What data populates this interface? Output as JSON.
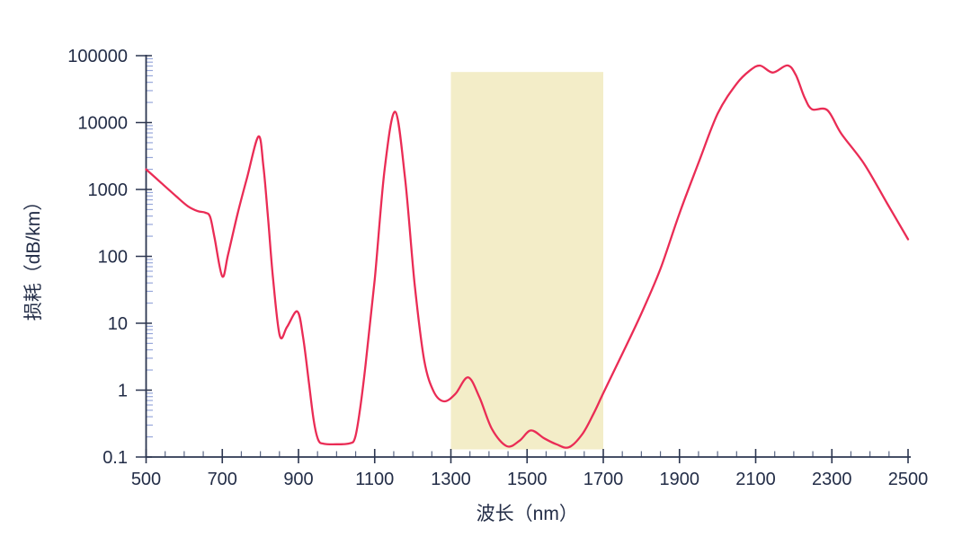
{
  "chart_data": {
    "type": "line",
    "xlabel": "波长（nm）",
    "ylabel": "损耗（dB/km）",
    "x_axis": {
      "min": 500,
      "max": 2500,
      "major_ticks": [
        500,
        700,
        900,
        1100,
        1300,
        1500,
        1700,
        1900,
        2100,
        2300,
        2500
      ],
      "minor_tick_step": 50,
      "scale": "linear"
    },
    "y_axis": {
      "min": 0.1,
      "max": 100000,
      "major_tick_labels": [
        "100000",
        "10000",
        "1000",
        "100",
        "10",
        "1",
        "0.1"
      ],
      "scale": "log"
    },
    "highlight_band": {
      "x_start": 1300,
      "x_end": 1700,
      "y_top": 57000,
      "y_bottom": 0.13,
      "color": "#f3edc8"
    },
    "series": [
      {
        "name": "attenuation-curve",
        "color": "#ea2c55",
        "points": [
          [
            500,
            2000
          ],
          [
            540,
            1250
          ],
          [
            580,
            780
          ],
          [
            610,
            560
          ],
          [
            635,
            475
          ],
          [
            655,
            450
          ],
          [
            668,
            390
          ],
          [
            680,
            185
          ],
          [
            700,
            50
          ],
          [
            715,
            105
          ],
          [
            740,
            430
          ],
          [
            765,
            1500
          ],
          [
            795,
            6200
          ],
          [
            808,
            2200
          ],
          [
            820,
            380
          ],
          [
            833,
            48
          ],
          [
            851,
            6.5
          ],
          [
            870,
            8.8
          ],
          [
            897,
            15
          ],
          [
            912,
            6.2
          ],
          [
            928,
            1.2
          ],
          [
            940,
            0.35
          ],
          [
            952,
            0.18
          ],
          [
            966,
            0.158
          ],
          [
            1000,
            0.155
          ],
          [
            1034,
            0.16
          ],
          [
            1048,
            0.19
          ],
          [
            1060,
            0.45
          ],
          [
            1076,
            2.4
          ],
          [
            1100,
            45
          ],
          [
            1126,
            2000
          ],
          [
            1154,
            14500
          ],
          [
            1180,
            1400
          ],
          [
            1205,
            38
          ],
          [
            1230,
            2.8
          ],
          [
            1255,
            0.95
          ],
          [
            1282,
            0.68
          ],
          [
            1312,
            0.88
          ],
          [
            1345,
            1.55
          ],
          [
            1375,
            0.78
          ],
          [
            1408,
            0.26
          ],
          [
            1447,
            0.145
          ],
          [
            1480,
            0.175
          ],
          [
            1510,
            0.25
          ],
          [
            1545,
            0.19
          ],
          [
            1577,
            0.155
          ],
          [
            1610,
            0.14
          ],
          [
            1645,
            0.22
          ],
          [
            1675,
            0.45
          ],
          [
            1700,
            0.9
          ],
          [
            1750,
            3.5
          ],
          [
            1800,
            14
          ],
          [
            1850,
            65
          ],
          [
            1900,
            440
          ],
          [
            1950,
            2500
          ],
          [
            2000,
            13500
          ],
          [
            2050,
            38000
          ],
          [
            2085,
            60000
          ],
          [
            2112,
            71000
          ],
          [
            2145,
            56000
          ],
          [
            2183,
            71500
          ],
          [
            2205,
            52000
          ],
          [
            2228,
            24000
          ],
          [
            2248,
            15800
          ],
          [
            2288,
            15300
          ],
          [
            2325,
            6800
          ],
          [
            2385,
            2400
          ],
          [
            2445,
            620
          ],
          [
            2500,
            180
          ]
        ]
      }
    ],
    "colors": {
      "curve": "#ea2c55",
      "band": "#f3edc8",
      "axis": "#2c3650",
      "text": "#232d47",
      "y_minor_tick": "#97a7da",
      "x_minor_tick": "#5c6886"
    },
    "legend": null,
    "grid": "off"
  }
}
